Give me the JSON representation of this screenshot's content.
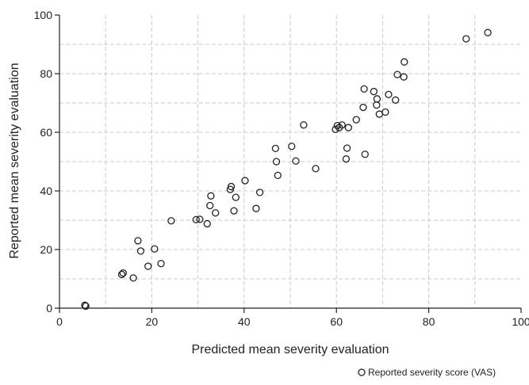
{
  "chart_data": {
    "type": "scatter",
    "xlabel": "Predicted mean severity evaluation",
    "ylabel": "Reported mean severity evaluation",
    "xlim": [
      0,
      100
    ],
    "ylim": [
      0,
      100
    ],
    "x_ticks": [
      0,
      20,
      40,
      60,
      80,
      100
    ],
    "y_ticks": [
      0,
      20,
      40,
      60,
      80,
      100
    ],
    "grid": true,
    "legend_position": "bottom-right",
    "series": [
      {
        "name": "Reported severity score (VAS)",
        "marker": "hollow-circle",
        "points": [
          [
            5.5,
            1
          ],
          [
            5.7,
            0.7
          ],
          [
            13.5,
            11.5
          ],
          [
            13.8,
            12
          ],
          [
            16,
            10.3
          ],
          [
            17,
            23
          ],
          [
            17.6,
            19.5
          ],
          [
            19.2,
            14.3
          ],
          [
            20.6,
            20.2
          ],
          [
            22,
            15.2
          ],
          [
            24.2,
            29.8
          ],
          [
            29.6,
            30.2
          ],
          [
            30.4,
            30.3
          ],
          [
            32,
            28.8
          ],
          [
            32.6,
            35
          ],
          [
            32.8,
            38.3
          ],
          [
            33.8,
            32.5
          ],
          [
            37,
            40.5
          ],
          [
            37.2,
            41.5
          ],
          [
            37.8,
            33.2
          ],
          [
            38.2,
            37.8
          ],
          [
            40.2,
            43.5
          ],
          [
            42.6,
            34
          ],
          [
            43.4,
            39.5
          ],
          [
            46.8,
            54.5
          ],
          [
            47,
            50
          ],
          [
            47.3,
            45.3
          ],
          [
            50.3,
            55.2
          ],
          [
            51.2,
            50.2
          ],
          [
            52.9,
            62.5
          ],
          [
            55.5,
            47.6
          ],
          [
            59.8,
            61
          ],
          [
            60.2,
            62.3
          ],
          [
            60.6,
            61.6
          ],
          [
            61.2,
            62.5
          ],
          [
            62.1,
            50.9
          ],
          [
            62.3,
            54.6
          ],
          [
            62.6,
            61.6
          ],
          [
            64.3,
            64.3
          ],
          [
            65.8,
            68.5
          ],
          [
            66,
            74.8
          ],
          [
            66.2,
            52.5
          ],
          [
            68.1,
            73.9
          ],
          [
            68.7,
            69.3
          ],
          [
            68.8,
            71.4
          ],
          [
            69.3,
            66.2
          ],
          [
            70.6,
            66.9
          ],
          [
            71.3,
            72.9
          ],
          [
            72.8,
            71
          ],
          [
            73.2,
            79.7
          ],
          [
            74.6,
            78.9
          ],
          [
            74.7,
            84
          ],
          [
            88.1,
            91.9
          ],
          [
            92.8,
            94
          ]
        ]
      }
    ]
  }
}
